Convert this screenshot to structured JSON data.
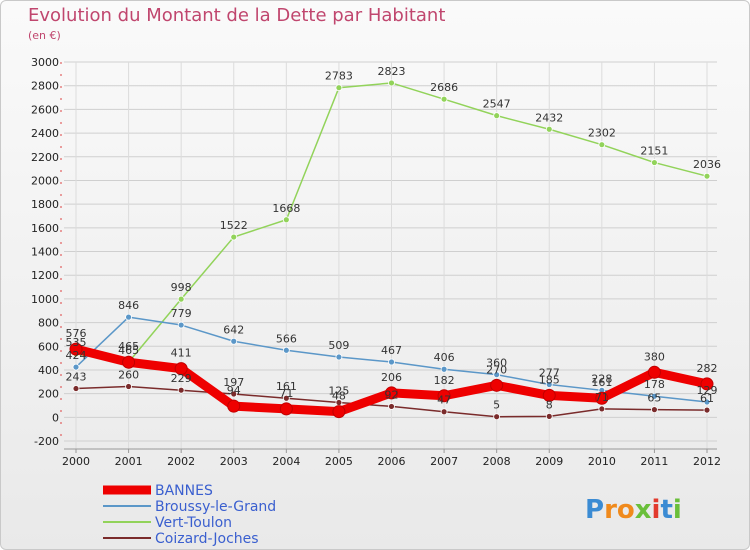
{
  "title": "Evolution du Montant de la Dette par Habitant",
  "subtitle": "(en €)",
  "logo": "Proxiti",
  "chart_data": {
    "type": "line",
    "x": [
      "2000",
      "2001",
      "2002",
      "2003",
      "2004",
      "2005",
      "2006",
      "2007",
      "2008",
      "2009",
      "2010",
      "2011",
      "2012"
    ],
    "ylim": [
      -200,
      3000
    ],
    "yticks": [
      -200,
      0,
      200,
      400,
      600,
      800,
      1000,
      1200,
      1400,
      1600,
      1800,
      2000,
      2200,
      2400,
      2600,
      2800,
      3000
    ],
    "grid": true,
    "legend_position": "bottom-left",
    "series": [
      {
        "name": "BANNES",
        "color": "#ee0000",
        "values": [
          576,
          465,
          411,
          94,
          71,
          48,
          206,
          182,
          270,
          185,
          161,
          380,
          282
        ]
      },
      {
        "name": "Broussy-le-Grand",
        "color": "#5b97c8",
        "values": [
          424,
          846,
          779,
          642,
          566,
          509,
          467,
          406,
          360,
          277,
          228,
          178,
          129
        ]
      },
      {
        "name": "Vert-Toulon",
        "color": "#92d35a",
        "values": [
          535,
          465,
          998,
          1522,
          1668,
          2783,
          2823,
          2686,
          2547,
          2432,
          2302,
          2151,
          2036
        ]
      },
      {
        "name": "Coizard-Joches",
        "color": "#7a2b2b",
        "values": [
          243,
          260,
          229,
          197,
          161,
          125,
          92,
          47,
          5,
          8,
          71,
          65,
          61
        ]
      }
    ]
  }
}
